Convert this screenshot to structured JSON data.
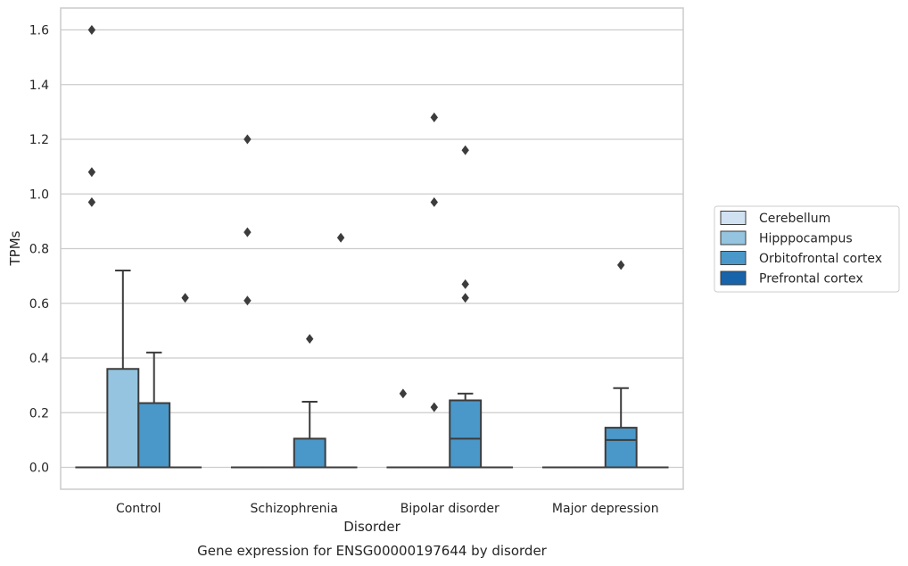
{
  "chart_data": {
    "type": "box",
    "caption": "Gene expression for ENSG00000197644 by disorder",
    "xlabel": "Disorder",
    "ylabel": "TPMs",
    "ylim": [
      -0.08,
      1.68
    ],
    "yticks": [
      "0.0",
      "0.2",
      "0.4",
      "0.6",
      "0.8",
      "1.0",
      "1.2",
      "1.4",
      "1.6"
    ],
    "grid": "horizontal",
    "legend_position": "right",
    "categories": [
      "Control",
      "Schizophrenia",
      "Bipolar disorder",
      "Major depression"
    ],
    "series": [
      {
        "name": "Cerebellum",
        "color": "#d0e1f2",
        "boxes": [
          {
            "q1": 0,
            "median": 0,
            "q3": 0,
            "whisker_low": 0,
            "whisker_high": 0,
            "outliers": [
              1.6,
              1.08,
              0.97
            ]
          },
          {
            "q1": 0,
            "median": 0,
            "q3": 0,
            "whisker_low": 0,
            "whisker_high": 0,
            "outliers": [
              1.2,
              0.86,
              0.61
            ]
          },
          {
            "q1": 0,
            "median": 0,
            "q3": 0,
            "whisker_low": 0,
            "whisker_high": 0,
            "outliers": [
              0.27
            ]
          },
          {
            "q1": 0,
            "median": 0,
            "q3": 0,
            "whisker_low": 0,
            "whisker_high": 0,
            "outliers": []
          }
        ]
      },
      {
        "name": "Hipppocampus",
        "color": "#94c4df",
        "boxes": [
          {
            "q1": 0,
            "median": 0,
            "q3": 0.36,
            "whisker_low": 0,
            "whisker_high": 0.72,
            "outliers": []
          },
          {
            "q1": 0,
            "median": 0,
            "q3": 0,
            "whisker_low": 0,
            "whisker_high": 0,
            "outliers": []
          },
          {
            "q1": 0,
            "median": 0,
            "q3": 0,
            "whisker_low": 0,
            "whisker_high": 0,
            "outliers": [
              1.28,
              0.97,
              0.22
            ]
          },
          {
            "q1": 0,
            "median": 0,
            "q3": 0,
            "whisker_low": 0,
            "whisker_high": 0,
            "outliers": []
          }
        ]
      },
      {
        "name": "Orbitofrontal cortex",
        "color": "#4a98c9",
        "boxes": [
          {
            "q1": 0,
            "median": 0,
            "q3": 0.235,
            "whisker_low": 0,
            "whisker_high": 0.42,
            "outliers": []
          },
          {
            "q1": 0,
            "median": 0,
            "q3": 0.105,
            "whisker_low": 0,
            "whisker_high": 0.24,
            "outliers": [
              0.47
            ]
          },
          {
            "q1": 0,
            "median": 0.105,
            "q3": 0.245,
            "whisker_low": 0,
            "whisker_high": 0.27,
            "outliers": [
              1.16,
              0.67,
              0.62
            ]
          },
          {
            "q1": 0,
            "median": 0.1,
            "q3": 0.145,
            "whisker_low": 0,
            "whisker_high": 0.29,
            "outliers": [
              0.74
            ]
          }
        ]
      },
      {
        "name": "Prefrontal cortex",
        "color": "#1764ab",
        "boxes": [
          {
            "q1": 0,
            "median": 0,
            "q3": 0,
            "whisker_low": 0,
            "whisker_high": 0,
            "outliers": [
              0.62
            ]
          },
          {
            "q1": 0,
            "median": 0,
            "q3": 0,
            "whisker_low": 0,
            "whisker_high": 0,
            "outliers": [
              0.84
            ]
          },
          {
            "q1": 0,
            "median": 0,
            "q3": 0,
            "whisker_low": 0,
            "whisker_high": 0,
            "outliers": []
          },
          {
            "q1": 0,
            "median": 0,
            "q3": 0,
            "whisker_low": 0,
            "whisker_high": 0,
            "outliers": []
          }
        ]
      }
    ]
  }
}
